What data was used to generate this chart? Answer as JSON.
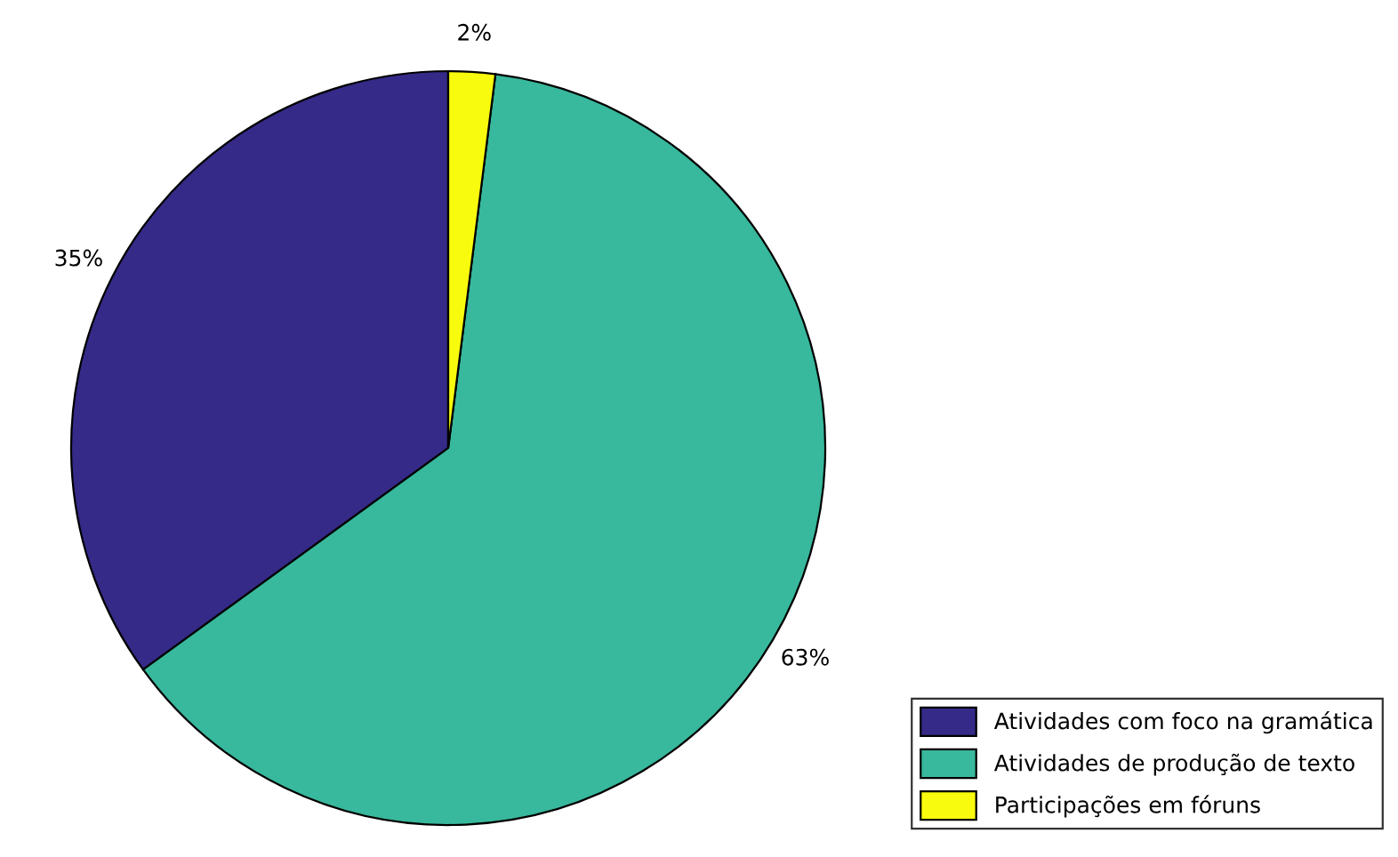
{
  "chart_data": {
    "type": "pie",
    "categories": [
      "Atividades com foco na gramática",
      "Atividades de produção de texto",
      "Participações em fóruns"
    ],
    "values": [
      35,
      63,
      2
    ],
    "colors": [
      "#352a87",
      "#38b89c",
      "#f9fb0e"
    ],
    "value_labels": [
      "35%",
      "63%",
      "2%"
    ],
    "legend": "bottom right"
  }
}
